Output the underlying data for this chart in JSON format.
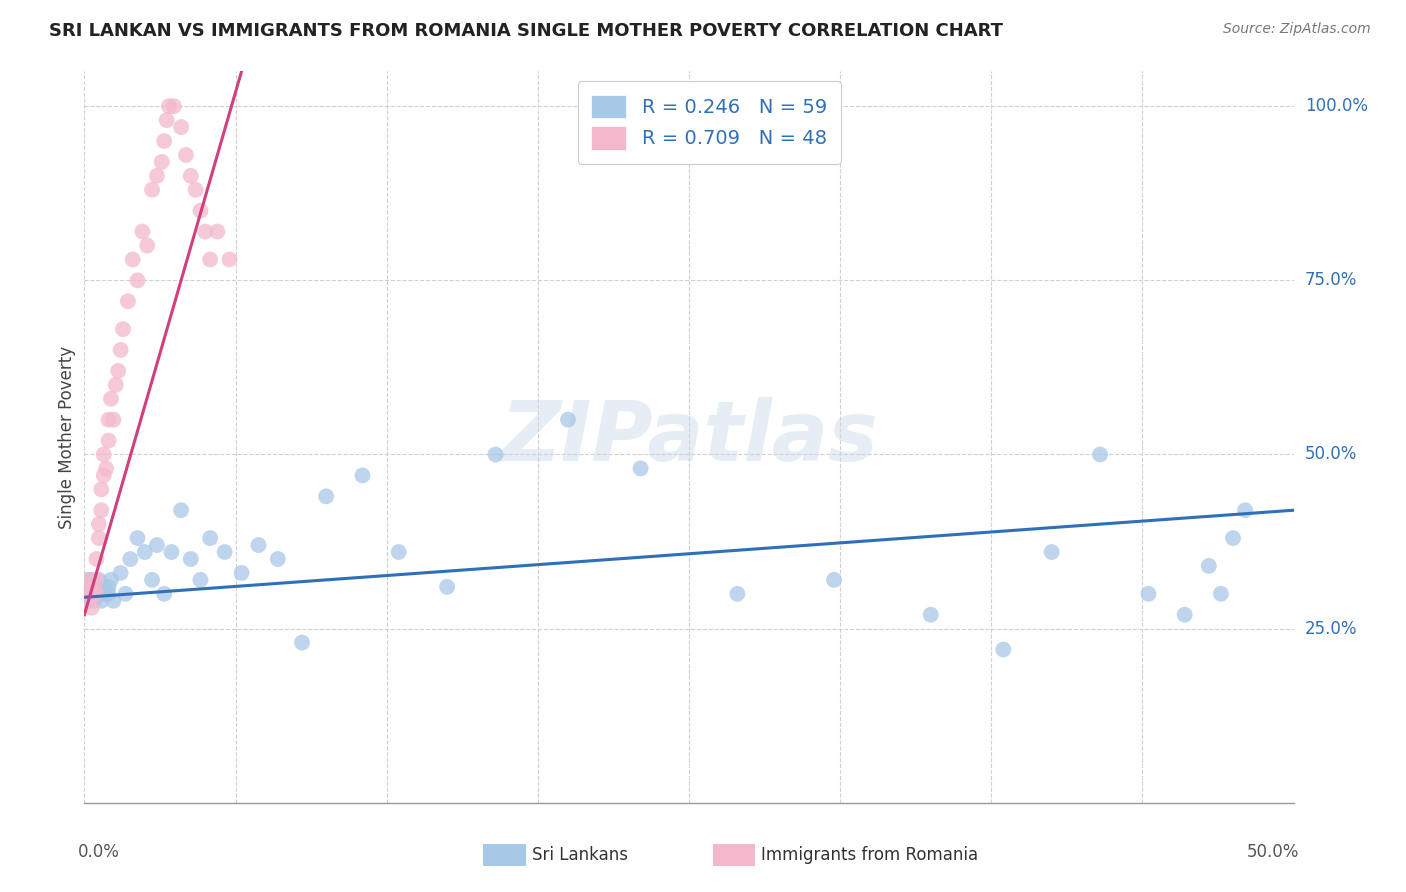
{
  "title": "SRI LANKAN VS IMMIGRANTS FROM ROMANIA SINGLE MOTHER POVERTY CORRELATION CHART",
  "source": "Source: ZipAtlas.com",
  "ylabel": "Single Mother Poverty",
  "legend_label1": "Sri Lankans",
  "legend_label2": "Immigrants from Romania",
  "legend_r1": "R = 0.246",
  "legend_n1": "N = 59",
  "legend_r2": "R = 0.709",
  "legend_n2": "N = 48",
  "watermark": "ZIPatlas",
  "blue_color": "#a8c8e8",
  "pink_color": "#f4b8cc",
  "blue_line_color": "#3070b8",
  "pink_line_color": "#d04080",
  "grid_color": "#d0d0d0",
  "background_color": "#ffffff",
  "xlim": [
    0.0,
    0.5
  ],
  "ylim": [
    0.0,
    1.05
  ],
  "ytick_positions": [
    0.25,
    0.5,
    0.75,
    1.0
  ],
  "ytick_labels": [
    "25.0%",
    "50.0%",
    "75.0%",
    "100.0%"
  ],
  "xtick_labels_left": "0.0%",
  "xtick_labels_right": "50.0%",
  "sri_lankan_x": [
    0.001,
    0.001,
    0.002,
    0.002,
    0.003,
    0.003,
    0.004,
    0.004,
    0.004,
    0.005,
    0.005,
    0.006,
    0.006,
    0.007,
    0.007,
    0.008,
    0.008,
    0.009,
    0.01,
    0.01,
    0.011,
    0.012,
    0.015,
    0.017,
    0.019,
    0.022,
    0.025,
    0.028,
    0.03,
    0.033,
    0.036,
    0.04,
    0.044,
    0.048,
    0.052,
    0.058,
    0.065,
    0.072,
    0.08,
    0.09,
    0.1,
    0.115,
    0.13,
    0.15,
    0.17,
    0.2,
    0.23,
    0.27,
    0.31,
    0.35,
    0.38,
    0.4,
    0.42,
    0.44,
    0.455,
    0.465,
    0.47,
    0.475,
    0.48
  ],
  "sri_lankan_y": [
    0.31,
    0.3,
    0.32,
    0.29,
    0.3,
    0.32,
    0.29,
    0.31,
    0.3,
    0.3,
    0.31,
    0.3,
    0.32,
    0.3,
    0.29,
    0.31,
    0.3,
    0.3,
    0.31,
    0.3,
    0.32,
    0.29,
    0.33,
    0.3,
    0.35,
    0.38,
    0.36,
    0.32,
    0.37,
    0.3,
    0.36,
    0.42,
    0.35,
    0.32,
    0.38,
    0.36,
    0.33,
    0.37,
    0.35,
    0.23,
    0.44,
    0.47,
    0.36,
    0.31,
    0.5,
    0.55,
    0.48,
    0.3,
    0.32,
    0.27,
    0.22,
    0.36,
    0.5,
    0.3,
    0.27,
    0.34,
    0.3,
    0.38,
    0.42
  ],
  "romania_x": [
    0.001,
    0.001,
    0.002,
    0.002,
    0.003,
    0.003,
    0.003,
    0.004,
    0.004,
    0.005,
    0.005,
    0.005,
    0.006,
    0.006,
    0.007,
    0.007,
    0.008,
    0.008,
    0.009,
    0.01,
    0.01,
    0.011,
    0.012,
    0.013,
    0.014,
    0.015,
    0.016,
    0.018,
    0.02,
    0.022,
    0.024,
    0.026,
    0.028,
    0.03,
    0.032,
    0.033,
    0.034,
    0.035,
    0.037,
    0.04,
    0.042,
    0.044,
    0.046,
    0.048,
    0.05,
    0.052,
    0.055,
    0.06
  ],
  "romania_y": [
    0.3,
    0.32,
    0.29,
    0.31,
    0.3,
    0.3,
    0.28,
    0.3,
    0.31,
    0.32,
    0.35,
    0.3,
    0.38,
    0.4,
    0.42,
    0.45,
    0.47,
    0.5,
    0.48,
    0.52,
    0.55,
    0.58,
    0.55,
    0.6,
    0.62,
    0.65,
    0.68,
    0.72,
    0.78,
    0.75,
    0.82,
    0.8,
    0.88,
    0.9,
    0.92,
    0.95,
    0.98,
    1.0,
    1.0,
    0.97,
    0.93,
    0.9,
    0.88,
    0.85,
    0.82,
    0.78,
    0.82,
    0.78
  ],
  "sri_line_x0": 0.0,
  "sri_line_x1": 0.5,
  "sri_line_y0": 0.295,
  "sri_line_y1": 0.42,
  "rom_line_x0": 0.0,
  "rom_line_x1": 0.065,
  "rom_line_y0": 0.27,
  "rom_line_y1": 1.05
}
